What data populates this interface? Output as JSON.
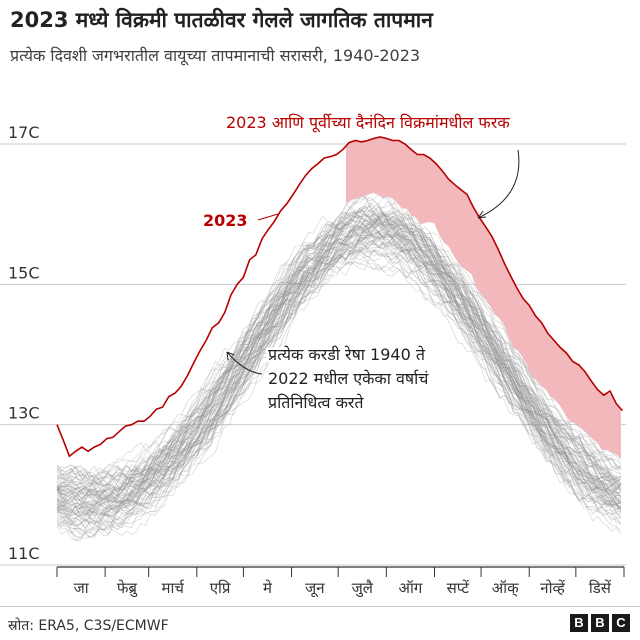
{
  "header": {
    "title": "2023 मध्ये विक्रमी पातळीवर गेलले जागतिक तापमान",
    "subtitle": "प्रत्येक दिवशी जगभरातील वायूच्या तापमानाची सरासरी, 1940-2023"
  },
  "footer": {
    "source": "स्रोत: ERA5, C3S/ECMWF",
    "logo_letters": [
      "B",
      "B",
      "C"
    ]
  },
  "chart_data": {
    "type": "line",
    "ylim": [
      11,
      17.4
    ],
    "y_ticks": [
      {
        "value": 11,
        "label": "11C"
      },
      {
        "value": 13,
        "label": "13C"
      },
      {
        "value": 15,
        "label": "15C"
      },
      {
        "value": 17,
        "label": "17C"
      }
    ],
    "grid": true,
    "months": [
      "जा",
      "फेब्रु",
      "मार्च",
      "एप्रि",
      "मे",
      "जून",
      "जुलै",
      "ऑग",
      "सप्टें",
      "ऑक्",
      "नोव्हें",
      "डिसें"
    ],
    "series_2023": {
      "name": "2023",
      "color": "#b80000",
      "points": [
        [
          0,
          13.0
        ],
        [
          4,
          12.78
        ],
        [
          8,
          12.55
        ],
        [
          12,
          12.62
        ],
        [
          16,
          12.68
        ],
        [
          20,
          12.62
        ],
        [
          24,
          12.68
        ],
        [
          28,
          12.72
        ],
        [
          32,
          12.8
        ],
        [
          36,
          12.82
        ],
        [
          40,
          12.9
        ],
        [
          44,
          12.98
        ],
        [
          48,
          13.0
        ],
        [
          52,
          13.05
        ],
        [
          56,
          13.05
        ],
        [
          60,
          13.12
        ],
        [
          64,
          13.22
        ],
        [
          68,
          13.25
        ],
        [
          72,
          13.4
        ],
        [
          76,
          13.45
        ],
        [
          80,
          13.55
        ],
        [
          84,
          13.7
        ],
        [
          88,
          13.88
        ],
        [
          92,
          14.05
        ],
        [
          96,
          14.2
        ],
        [
          100,
          14.38
        ],
        [
          104,
          14.45
        ],
        [
          108,
          14.6
        ],
        [
          112,
          14.85
        ],
        [
          116,
          15.0
        ],
        [
          120,
          15.1
        ],
        [
          124,
          15.35
        ],
        [
          128,
          15.42
        ],
        [
          132,
          15.65
        ],
        [
          136,
          15.78
        ],
        [
          140,
          15.9
        ],
        [
          144,
          16.05
        ],
        [
          148,
          16.15
        ],
        [
          152,
          16.28
        ],
        [
          156,
          16.42
        ],
        [
          160,
          16.55
        ],
        [
          164,
          16.65
        ],
        [
          168,
          16.72
        ],
        [
          172,
          16.8
        ],
        [
          176,
          16.82
        ],
        [
          180,
          16.85
        ],
        [
          184,
          16.92
        ],
        [
          188,
          17.02
        ],
        [
          192,
          17.05
        ],
        [
          196,
          17.03
        ],
        [
          200,
          17.05
        ],
        [
          204,
          17.08
        ],
        [
          208,
          17.1
        ],
        [
          212,
          17.08
        ],
        [
          216,
          17.05
        ],
        [
          220,
          17.05
        ],
        [
          224,
          17.0
        ],
        [
          228,
          16.92
        ],
        [
          232,
          16.85
        ],
        [
          236,
          16.85
        ],
        [
          240,
          16.8
        ],
        [
          244,
          16.72
        ],
        [
          248,
          16.62
        ],
        [
          252,
          16.5
        ],
        [
          256,
          16.42
        ],
        [
          260,
          16.35
        ],
        [
          264,
          16.28
        ],
        [
          268,
          16.1
        ],
        [
          272,
          15.95
        ],
        [
          276,
          15.82
        ],
        [
          280,
          15.68
        ],
        [
          284,
          15.5
        ],
        [
          288,
          15.3
        ],
        [
          292,
          15.12
        ],
        [
          296,
          14.95
        ],
        [
          300,
          14.8
        ],
        [
          304,
          14.7
        ],
        [
          308,
          14.55
        ],
        [
          312,
          14.45
        ],
        [
          316,
          14.3
        ],
        [
          320,
          14.2
        ],
        [
          324,
          14.1
        ],
        [
          328,
          14.02
        ],
        [
          332,
          13.9
        ],
        [
          336,
          13.85
        ],
        [
          340,
          13.75
        ],
        [
          344,
          13.62
        ],
        [
          348,
          13.5
        ],
        [
          352,
          13.42
        ],
        [
          356,
          13.48
        ],
        [
          360,
          13.3
        ],
        [
          364,
          13.2
        ]
      ]
    },
    "annotations": {
      "label_2023": "2023",
      "gap_note": "2023 आणि पूर्वीच्या दैनंदिन विक्रमांमधील फरक",
      "gray_note": [
        "प्रत्येक करडी रेषा 1940 ते",
        "2022 मधील एकेका वर्षाचं",
        "प्रतिनिधित्व करते"
      ]
    },
    "colors": {
      "history_lines": "#8c8c8c",
      "record_gap_fill": "#f2b8bb",
      "line_2023": "#b80000",
      "grid": "#cccccc"
    }
  }
}
